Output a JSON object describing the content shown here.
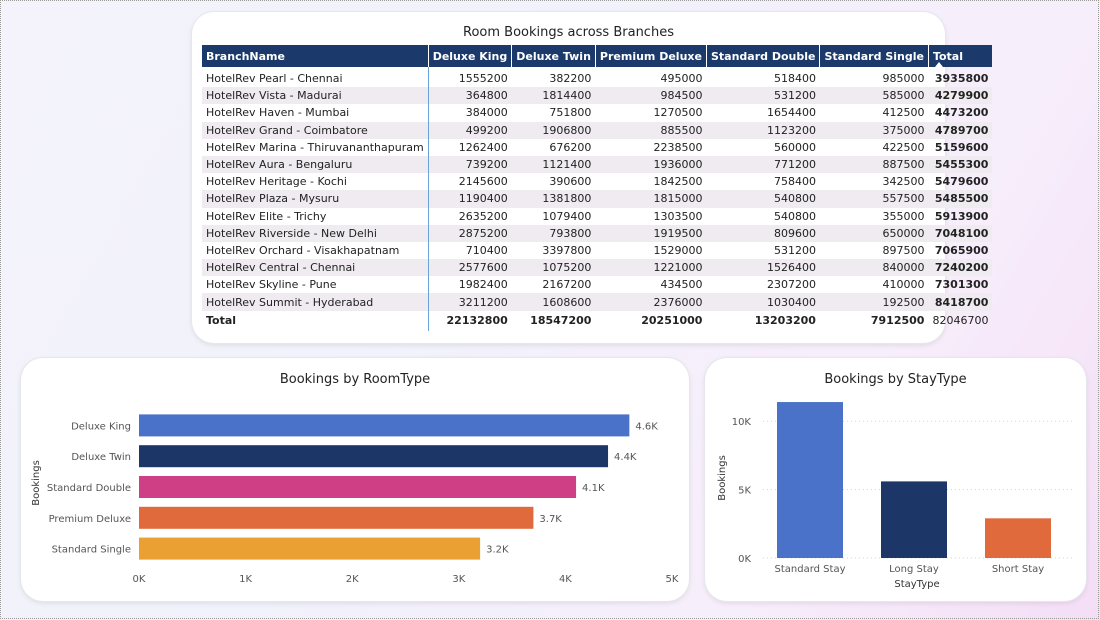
{
  "table": {
    "title": "Room Bookings across Branches",
    "columns": [
      "BranchName",
      "Deluxe King",
      "Deluxe Twin",
      "Premium Deluxe",
      "Standard Double",
      "Standard Single",
      "Total"
    ],
    "rows": [
      {
        "name": "HotelRev Pearl - Chennai",
        "values": [
          "1555200",
          "382200",
          "495000",
          "518400",
          "985000",
          "3935800"
        ]
      },
      {
        "name": "HotelRev Vista - Madurai",
        "values": [
          "364800",
          "1814400",
          "984500",
          "531200",
          "585000",
          "4279900"
        ]
      },
      {
        "name": "HotelRev Haven - Mumbai",
        "values": [
          "384000",
          "751800",
          "1270500",
          "1654400",
          "412500",
          "4473200"
        ]
      },
      {
        "name": "HotelRev Grand - Coimbatore",
        "values": [
          "499200",
          "1906800",
          "885500",
          "1123200",
          "375000",
          "4789700"
        ]
      },
      {
        "name": "HotelRev Marina - Thiruvananthapuram",
        "values": [
          "1262400",
          "676200",
          "2238500",
          "560000",
          "422500",
          "5159600"
        ]
      },
      {
        "name": "HotelRev Aura - Bengaluru",
        "values": [
          "739200",
          "1121400",
          "1936000",
          "771200",
          "887500",
          "5455300"
        ]
      },
      {
        "name": "HotelRev Heritage - Kochi",
        "values": [
          "2145600",
          "390600",
          "1842500",
          "758400",
          "342500",
          "5479600"
        ]
      },
      {
        "name": "HotelRev Plaza - Mysuru",
        "values": [
          "1190400",
          "1381800",
          "1815000",
          "540800",
          "557500",
          "5485500"
        ]
      },
      {
        "name": "HotelRev Elite - Trichy",
        "values": [
          "2635200",
          "1079400",
          "1303500",
          "540800",
          "355000",
          "5913900"
        ]
      },
      {
        "name": "HotelRev Riverside - New Delhi",
        "values": [
          "2875200",
          "793800",
          "1919500",
          "809600",
          "650000",
          "7048100"
        ]
      },
      {
        "name": "HotelRev Orchard - Visakhapatnam",
        "values": [
          "710400",
          "3397800",
          "1529000",
          "531200",
          "897500",
          "7065900"
        ]
      },
      {
        "name": "HotelRev Central - Chennai",
        "values": [
          "2577600",
          "1075200",
          "1221000",
          "1526400",
          "840000",
          "7240200"
        ]
      },
      {
        "name": "HotelRev Skyline - Pune",
        "values": [
          "1982400",
          "2167200",
          "434500",
          "2307200",
          "410000",
          "7301300"
        ]
      },
      {
        "name": "HotelRev Summit - Hyderabad",
        "values": [
          "3211200",
          "1608600",
          "2376000",
          "1030400",
          "192500",
          "8418700"
        ]
      }
    ],
    "total": {
      "label": "Total",
      "values": [
        "22132800",
        "18547200",
        "20251000",
        "13203200",
        "7912500",
        "82046700"
      ]
    }
  },
  "chart_data": [
    {
      "type": "bar",
      "orientation": "horizontal",
      "title": "Bookings by RoomType",
      "ylabel": "Bookings",
      "xlabel": "",
      "categories": [
        "Deluxe King",
        "Deluxe Twin",
        "Standard Double",
        "Premium Deluxe",
        "Standard Single"
      ],
      "values": [
        4600,
        4400,
        4100,
        3700,
        3200
      ],
      "data_labels": [
        "4.6K",
        "4.4K",
        "4.1K",
        "3.7K",
        "3.2K"
      ],
      "colors": [
        "#4a72c8",
        "#1c3668",
        "#cf3f86",
        "#e06a3c",
        "#eba033"
      ],
      "xlim": [
        0,
        5000
      ],
      "ticks": [
        0,
        1000,
        2000,
        3000,
        4000,
        5000
      ],
      "tick_labels": [
        "0K",
        "1K",
        "2K",
        "3K",
        "4K",
        "5K"
      ],
      "grid": false
    },
    {
      "type": "bar",
      "orientation": "vertical",
      "title": "Bookings by StayType",
      "ylabel": "Bookings",
      "xlabel": "StayType",
      "categories": [
        "Standard Stay",
        "Long Stay",
        "Short Stay"
      ],
      "values": [
        11400,
        5600,
        2900
      ],
      "colors": [
        "#4a72c8",
        "#1c3668",
        "#e06a3c"
      ],
      "ylim": [
        0,
        12500
      ],
      "ticks": [
        0,
        5000,
        10000
      ],
      "tick_labels": [
        "0K",
        "5K",
        "10K"
      ],
      "grid": true
    }
  ]
}
